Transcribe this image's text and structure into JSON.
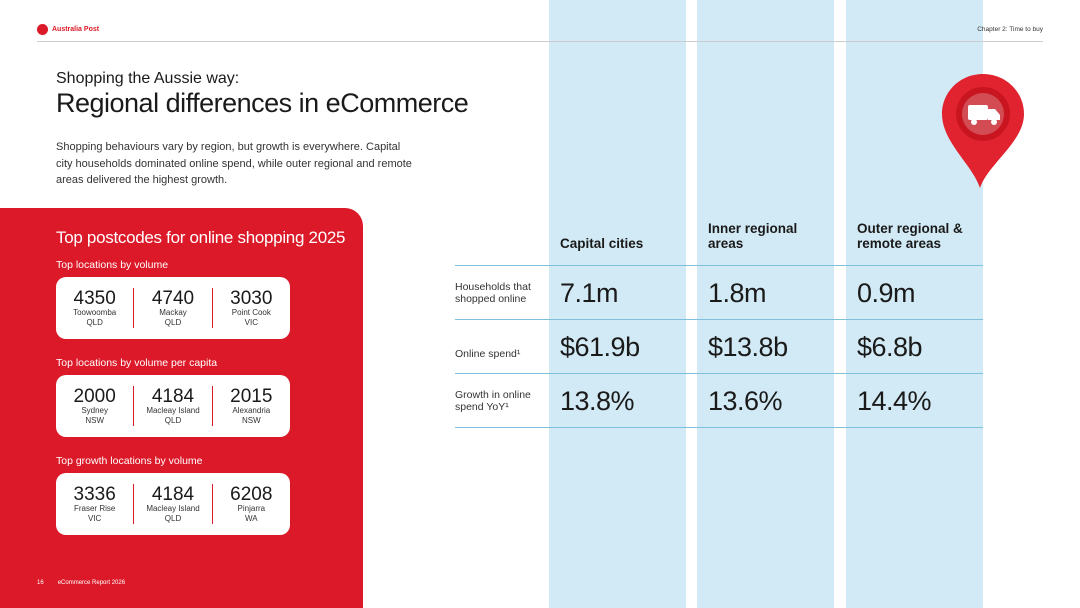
{
  "header": {
    "brand": "Australia Post",
    "chapter": "Chapter 2: Time to buy"
  },
  "page": {
    "subtitle": "Shopping the Aussie way:",
    "title": "Regional differences in eCommerce",
    "intro": "Shopping behaviours vary by region, but growth is everywhere. Capital city households dominated online spend, while outer regional and remote areas delivered the highest growth."
  },
  "panel": {
    "title": "Top postcodes for online shopping 2025",
    "sections": [
      {
        "label": "Top locations by volume",
        "items": [
          {
            "code": "4350",
            "place": "Toowoomba",
            "state": "QLD"
          },
          {
            "code": "4740",
            "place": "Mackay",
            "state": "QLD"
          },
          {
            "code": "3030",
            "place": "Point Cook",
            "state": "VIC"
          }
        ]
      },
      {
        "label": "Top locations by volume per capita",
        "items": [
          {
            "code": "2000",
            "place": "Sydney",
            "state": "NSW"
          },
          {
            "code": "4184",
            "place": "Macleay Island",
            "state": "QLD"
          },
          {
            "code": "2015",
            "place": "Alexandria",
            "state": "NSW"
          }
        ]
      },
      {
        "label": "Top growth locations by volume",
        "items": [
          {
            "code": "3336",
            "place": "Fraser Rise",
            "state": "VIC"
          },
          {
            "code": "4184",
            "place": "Macleay Island",
            "state": "QLD"
          },
          {
            "code": "6208",
            "place": "Pinjarra",
            "state": "WA"
          }
        ]
      }
    ]
  },
  "table": {
    "columns": [
      "Capital cities",
      "Inner regional areas",
      "Outer regional & remote areas"
    ],
    "rows": [
      {
        "label": "Households that shopped online",
        "values": [
          "7.1m",
          "1.8m",
          "0.9m"
        ]
      },
      {
        "label": "Online spend¹",
        "values": [
          "$61.9b",
          "$13.8b",
          "$6.8b"
        ]
      },
      {
        "label": "Growth in online spend YoY¹",
        "values": [
          "13.8%",
          "13.6%",
          "14.4%"
        ]
      }
    ]
  },
  "footer": {
    "page_number": "16",
    "report": "eCommerce Report 2026"
  },
  "icons": {
    "pin": "location-pin-truck-icon"
  },
  "colors": {
    "brand_red": "#dc1928",
    "column_blue": "#d2eaf5"
  }
}
